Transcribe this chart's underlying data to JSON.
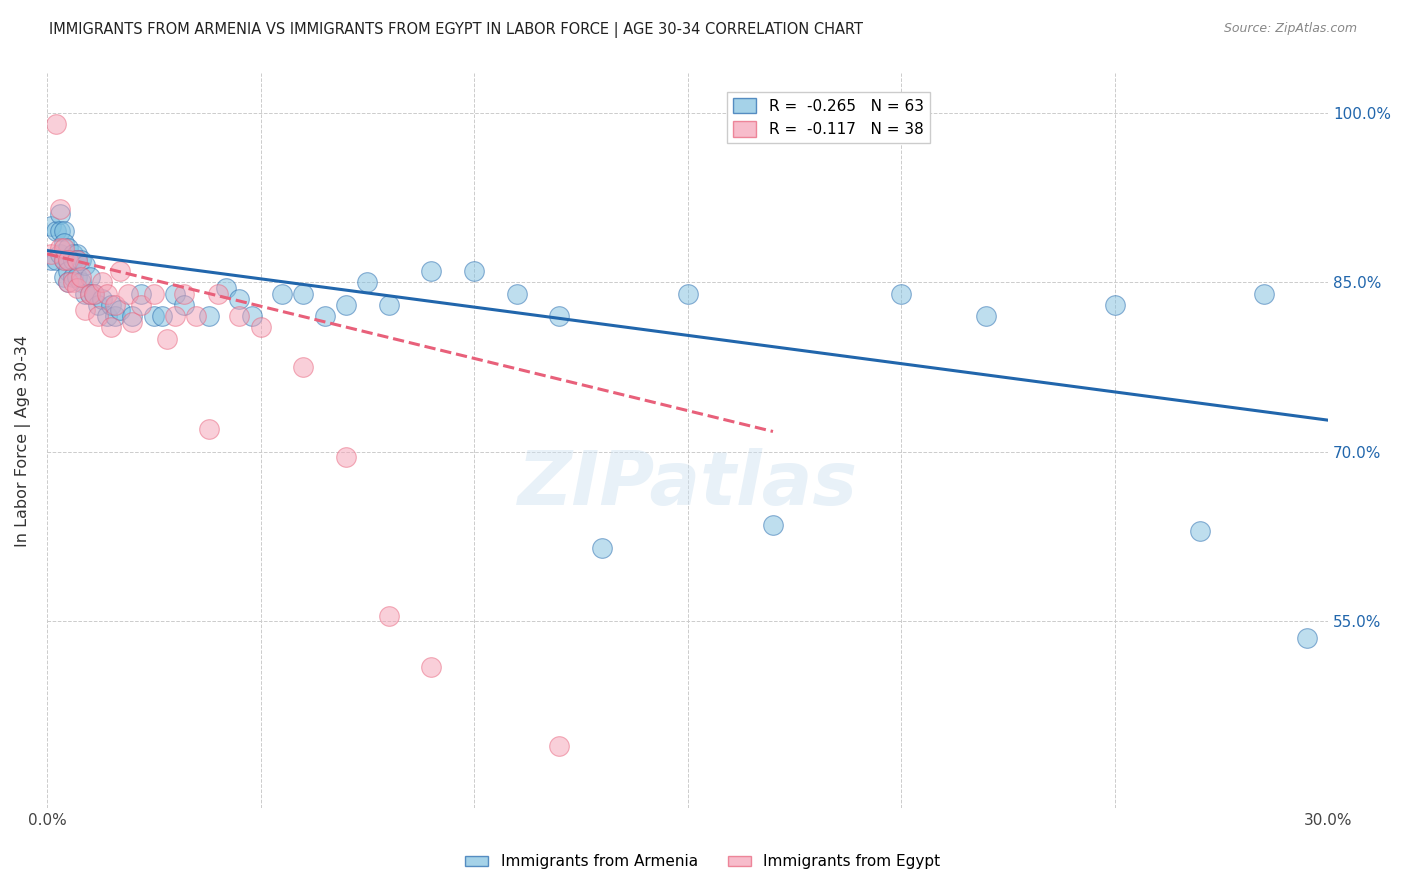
{
  "title": "IMMIGRANTS FROM ARMENIA VS IMMIGRANTS FROM EGYPT IN LABOR FORCE | AGE 30-34 CORRELATION CHART",
  "source": "Source: ZipAtlas.com",
  "ylabel": "In Labor Force | Age 30-34",
  "right_yticks": [
    "100.0%",
    "85.0%",
    "70.0%",
    "55.0%"
  ],
  "right_ytick_vals": [
    1.0,
    0.85,
    0.7,
    0.55
  ],
  "xlim": [
    0.0,
    0.3
  ],
  "ylim": [
    0.385,
    1.035
  ],
  "watermark": "ZIPatlas",
  "armenia_color": "#7fbfdf",
  "egypt_color": "#f4a0b5",
  "armenia_trend_color": "#2166ac",
  "egypt_trend_color": "#e8607a",
  "armenia_trend_x0": 0.0,
  "armenia_trend_y0": 0.878,
  "armenia_trend_x1": 0.3,
  "armenia_trend_y1": 0.728,
  "egypt_trend_x0": 0.0,
  "egypt_trend_y0": 0.875,
  "egypt_trend_x1": 0.17,
  "egypt_trend_y1": 0.718,
  "armenia_x": [
    0.001,
    0.001,
    0.002,
    0.002,
    0.003,
    0.003,
    0.003,
    0.004,
    0.004,
    0.004,
    0.004,
    0.005,
    0.005,
    0.005,
    0.005,
    0.006,
    0.006,
    0.006,
    0.007,
    0.007,
    0.007,
    0.008,
    0.008,
    0.009,
    0.009,
    0.01,
    0.01,
    0.011,
    0.012,
    0.013,
    0.014,
    0.015,
    0.016,
    0.017,
    0.02,
    0.022,
    0.025,
    0.027,
    0.03,
    0.032,
    0.038,
    0.042,
    0.045,
    0.048,
    0.055,
    0.06,
    0.065,
    0.07,
    0.075,
    0.08,
    0.09,
    0.1,
    0.11,
    0.12,
    0.13,
    0.15,
    0.17,
    0.2,
    0.22,
    0.25,
    0.27,
    0.285,
    0.295
  ],
  "armenia_y": [
    0.9,
    0.87,
    0.895,
    0.87,
    0.91,
    0.895,
    0.875,
    0.895,
    0.885,
    0.87,
    0.855,
    0.88,
    0.87,
    0.86,
    0.85,
    0.875,
    0.87,
    0.855,
    0.875,
    0.87,
    0.855,
    0.87,
    0.85,
    0.865,
    0.84,
    0.855,
    0.84,
    0.84,
    0.83,
    0.835,
    0.82,
    0.83,
    0.82,
    0.825,
    0.82,
    0.84,
    0.82,
    0.82,
    0.84,
    0.83,
    0.82,
    0.845,
    0.835,
    0.82,
    0.84,
    0.84,
    0.82,
    0.83,
    0.85,
    0.83,
    0.86,
    0.86,
    0.84,
    0.82,
    0.615,
    0.84,
    0.635,
    0.84,
    0.82,
    0.83,
    0.63,
    0.84,
    0.535
  ],
  "egypt_x": [
    0.001,
    0.002,
    0.003,
    0.003,
    0.004,
    0.004,
    0.005,
    0.005,
    0.006,
    0.007,
    0.007,
    0.008,
    0.009,
    0.01,
    0.011,
    0.012,
    0.013,
    0.014,
    0.015,
    0.016,
    0.017,
    0.019,
    0.02,
    0.022,
    0.025,
    0.028,
    0.03,
    0.032,
    0.035,
    0.038,
    0.04,
    0.045,
    0.05,
    0.06,
    0.07,
    0.08,
    0.09,
    0.12
  ],
  "egypt_y": [
    0.875,
    0.99,
    0.88,
    0.915,
    0.87,
    0.88,
    0.87,
    0.85,
    0.85,
    0.87,
    0.845,
    0.855,
    0.825,
    0.84,
    0.84,
    0.82,
    0.85,
    0.84,
    0.81,
    0.83,
    0.86,
    0.84,
    0.815,
    0.83,
    0.84,
    0.8,
    0.82,
    0.84,
    0.82,
    0.72,
    0.84,
    0.82,
    0.81,
    0.775,
    0.695,
    0.555,
    0.51,
    0.44
  ]
}
